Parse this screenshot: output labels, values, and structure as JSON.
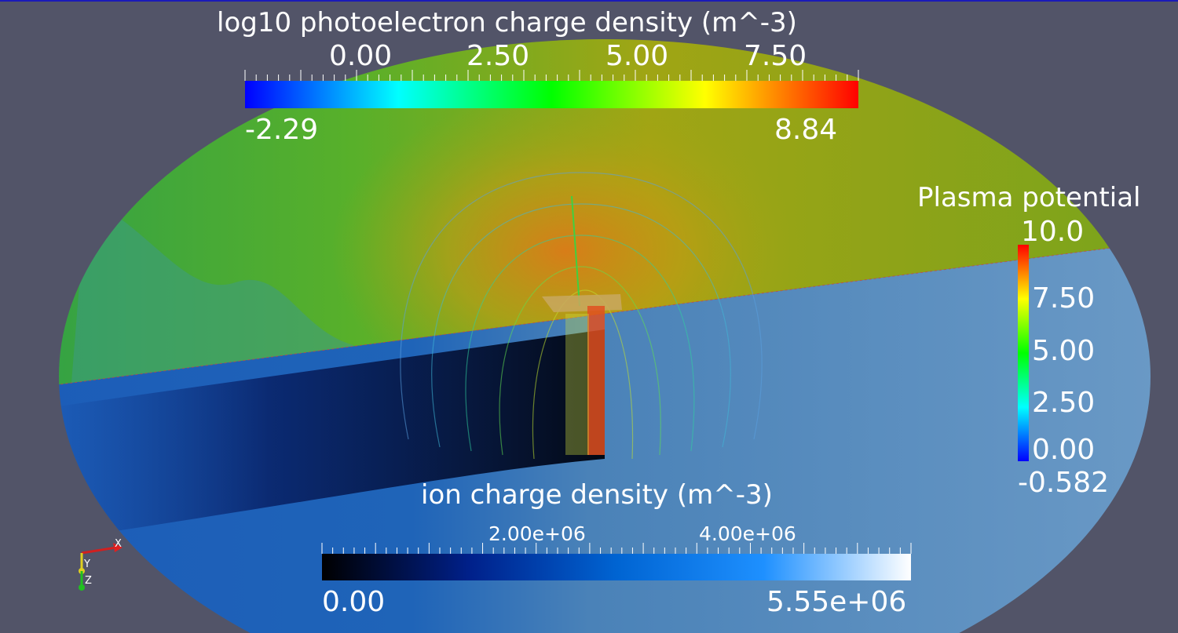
{
  "colorbars": {
    "photoelectron": {
      "title": "log10 photoelectron charge density (m^-3)",
      "ticks": [
        "0.00",
        "2.50",
        "5.00",
        "7.50"
      ],
      "min": "-2.29",
      "max": "8.84",
      "colors": [
        "#0000ff",
        "#00ffff",
        "#00ff00",
        "#ffff00",
        "#ff0000"
      ]
    },
    "plasma": {
      "title": "Plasma potential",
      "ticks": [
        "10.0",
        "7.50",
        "5.00",
        "2.50",
        "0.00"
      ],
      "min": "-0.582",
      "colors": [
        "#ff0000",
        "#ffff00",
        "#00ff00",
        "#00ffff",
        "#0000ff"
      ]
    },
    "ion": {
      "title": "ion charge density (m^-3)",
      "ticks": [
        "2.00e+06",
        "4.00e+06"
      ],
      "min": "0.00",
      "max": "5.55e+06",
      "colors": [
        "#000000",
        "#00208a",
        "#0064d2",
        "#1e90ff",
        "#ffffff"
      ]
    }
  },
  "axes": {
    "x": "X",
    "y": "Y",
    "z": "Z"
  },
  "colors": {
    "background": "#525468",
    "upper_plane": "#7fa51e",
    "lower_plane": "#5b8cb8"
  }
}
